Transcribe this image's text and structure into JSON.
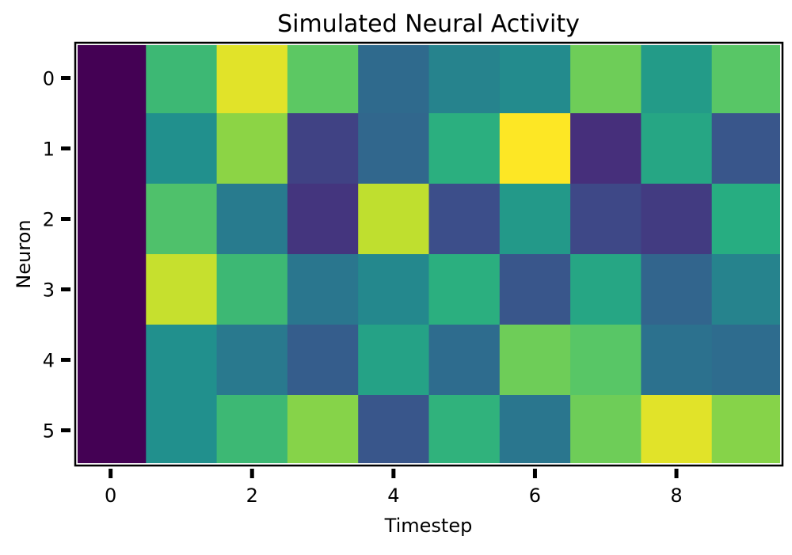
{
  "chart_data": {
    "type": "heatmap",
    "title": "Simulated Neural Activity",
    "xlabel": "Timestep",
    "ylabel": "Neuron",
    "x_ticks": [
      "0",
      "2",
      "4",
      "6",
      "8"
    ],
    "y_ticks": [
      "0",
      "1",
      "2",
      "3",
      "4",
      "5"
    ],
    "xlim": [
      -0.5,
      9.5
    ],
    "ylim": [
      5.5,
      -0.5
    ],
    "colormap": "viridis",
    "vmin": 0.0,
    "vmax": 1.0,
    "grid": false,
    "legend": "none",
    "rows": 6,
    "cols": 10,
    "values": [
      [
        0.0,
        0.68,
        0.96,
        0.75,
        0.35,
        0.45,
        0.48,
        0.78,
        0.55,
        0.74
      ],
      [
        0.0,
        0.5,
        0.83,
        0.2,
        0.34,
        0.64,
        1.0,
        0.14,
        0.6,
        0.27
      ],
      [
        0.0,
        0.72,
        0.42,
        0.16,
        0.91,
        0.24,
        0.54,
        0.22,
        0.18,
        0.63
      ],
      [
        0.0,
        0.92,
        0.68,
        0.4,
        0.47,
        0.64,
        0.27,
        0.6,
        0.33,
        0.45
      ],
      [
        0.0,
        0.5,
        0.41,
        0.3,
        0.58,
        0.36,
        0.78,
        0.74,
        0.38,
        0.36
      ],
      [
        0.0,
        0.5,
        0.68,
        0.82,
        0.27,
        0.65,
        0.4,
        0.78,
        0.96,
        0.82
      ]
    ]
  }
}
